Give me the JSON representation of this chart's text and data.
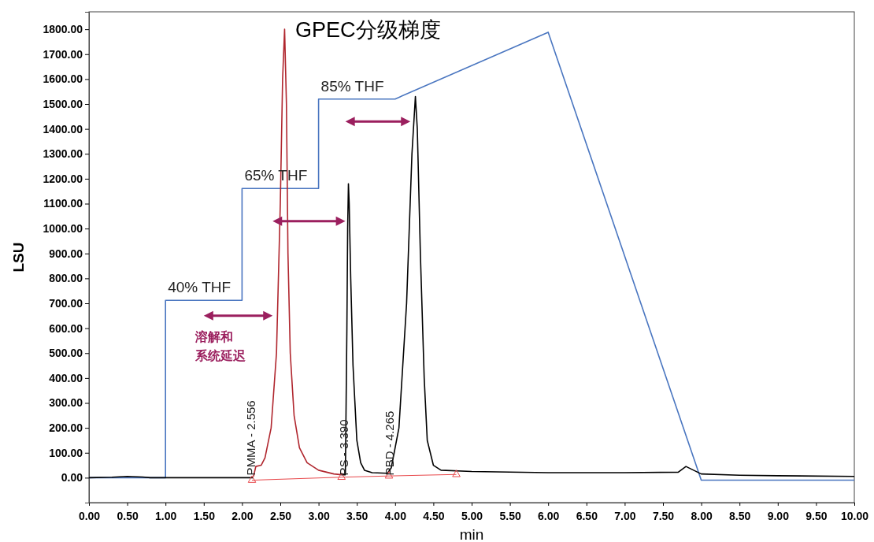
{
  "chart_data": {
    "type": "line",
    "title": "GPEC分级梯度",
    "xlabel": "min",
    "ylabel": "LSU",
    "xlim": [
      0,
      10
    ],
    "ylim": [
      -100,
      1870
    ],
    "xticks": [
      {
        "value": 0,
        "label": "0.00"
      },
      {
        "value": 0.5,
        "label": "0.50"
      },
      {
        "value": 1,
        "label": "1.00"
      },
      {
        "value": 1.5,
        "label": "1.50"
      },
      {
        "value": 2,
        "label": "2.00"
      },
      {
        "value": 2.5,
        "label": "2.50"
      },
      {
        "value": 3,
        "label": "3.00"
      },
      {
        "value": 3.5,
        "label": "3.50"
      },
      {
        "value": 4,
        "label": "4.00"
      },
      {
        "value": 4.5,
        "label": "4.50"
      },
      {
        "value": 5,
        "label": "5.00"
      },
      {
        "value": 5.5,
        "label": "5.50"
      },
      {
        "value": 6,
        "label": "6.00"
      },
      {
        "value": 6.5,
        "label": "6.50"
      },
      {
        "value": 7,
        "label": "7.00"
      },
      {
        "value": 7.5,
        "label": "7.50"
      },
      {
        "value": 8,
        "label": "8.00"
      },
      {
        "value": 8.5,
        "label": "8.50"
      },
      {
        "value": 9,
        "label": "9.00"
      },
      {
        "value": 9.5,
        "label": "9.50"
      },
      {
        "value": 10,
        "label": "10.00"
      }
    ],
    "yticks": [
      {
        "value": 0,
        "label": "0.00"
      },
      {
        "value": 100,
        "label": "100.00"
      },
      {
        "value": 200,
        "label": "200.00"
      },
      {
        "value": 300,
        "label": "300.00"
      },
      {
        "value": 400,
        "label": "400.00"
      },
      {
        "value": 500,
        "label": "500.00"
      },
      {
        "value": 600,
        "label": "600.00"
      },
      {
        "value": 700,
        "label": "700.00"
      },
      {
        "value": 800,
        "label": "800.00"
      },
      {
        "value": 900,
        "label": "900.00"
      },
      {
        "value": 1000,
        "label": "1000.00"
      },
      {
        "value": 1100,
        "label": "1100.00"
      },
      {
        "value": 1200,
        "label": "1200.00"
      },
      {
        "value": 1300,
        "label": "1300.00"
      },
      {
        "value": 1400,
        "label": "1400.00"
      },
      {
        "value": 1500,
        "label": "1500.00"
      },
      {
        "value": 1600,
        "label": "1600.00"
      },
      {
        "value": 1700,
        "label": "1700.00"
      },
      {
        "value": 1800,
        "label": "1800.00"
      }
    ],
    "grid": false,
    "line_style": "solid",
    "series": [
      {
        "color": "#4a76c0",
        "x": [
          0,
          1,
          1,
          2,
          2,
          3,
          3,
          4,
          6,
          8,
          10
        ],
        "values": [
          0,
          0,
          712,
          712,
          1161,
          1161,
          1520,
          1520,
          1788,
          -10,
          -10
        ]
      },
      {
        "color": "#000000",
        "x": [
          0,
          0.3,
          0.5,
          0.7,
          0.8,
          1,
          1.5,
          2,
          2.15,
          2.2,
          3.3,
          3.35,
          3.37,
          3.38,
          3.39,
          3.4,
          3.42,
          3.45,
          3.5,
          3.55,
          3.6,
          3.7,
          3.9,
          3.95,
          4.05,
          4.15,
          4.22,
          4.265,
          4.29,
          4.33,
          4.38,
          4.42,
          4.5,
          4.6,
          5,
          6,
          7,
          7.7,
          7.8,
          7.9,
          8,
          8.5,
          9,
          10
        ],
        "values": [
          0,
          2,
          5,
          3,
          0,
          0,
          0,
          0,
          0,
          null,
          12,
          12,
          600,
          1000,
          1180,
          1100,
          800,
          450,
          150,
          60,
          30,
          20,
          18,
          40,
          200,
          700,
          1300,
          1530,
          1400,
          900,
          400,
          150,
          50,
          30,
          25,
          20,
          20,
          22,
          45,
          30,
          15,
          10,
          8,
          5
        ]
      },
      {
        "color": "#b0262e",
        "x": [
          2.15,
          2.18,
          2.25,
          2.3,
          2.38,
          2.45,
          2.5,
          2.53,
          2.556,
          2.58,
          2.6,
          2.63,
          2.68,
          2.75,
          2.85,
          3,
          3.2,
          3.3
        ],
        "values": [
          5,
          45,
          50,
          80,
          200,
          500,
          1100,
          1600,
          1800,
          1500,
          900,
          500,
          250,
          120,
          60,
          30,
          15,
          12
        ]
      },
      {
        "color": "#e8474a",
        "type": "line",
        "marker": "triangle",
        "x": [
          2.13,
          3.3,
          3.92,
          4.8
        ],
        "values": [
          -10,
          2,
          7,
          13
        ]
      }
    ],
    "annotations": [
      {
        "text": "40% THF",
        "x": 1,
        "y": 712
      },
      {
        "text": "65% THF",
        "x": 2,
        "y": 1161
      },
      {
        "text": "85% THF",
        "x": 3,
        "y": 1520
      },
      "溶解和",
      "系统延迟",
      {
        "text": "PMMA - 2.556",
        "x": 2.12,
        "y": 0
      },
      {
        "text": "PS - 3.390",
        "x": 3.33,
        "y": 0
      },
      {
        "text": "PBD - 4.265",
        "x": 3.93,
        "y": 0
      }
    ]
  }
}
